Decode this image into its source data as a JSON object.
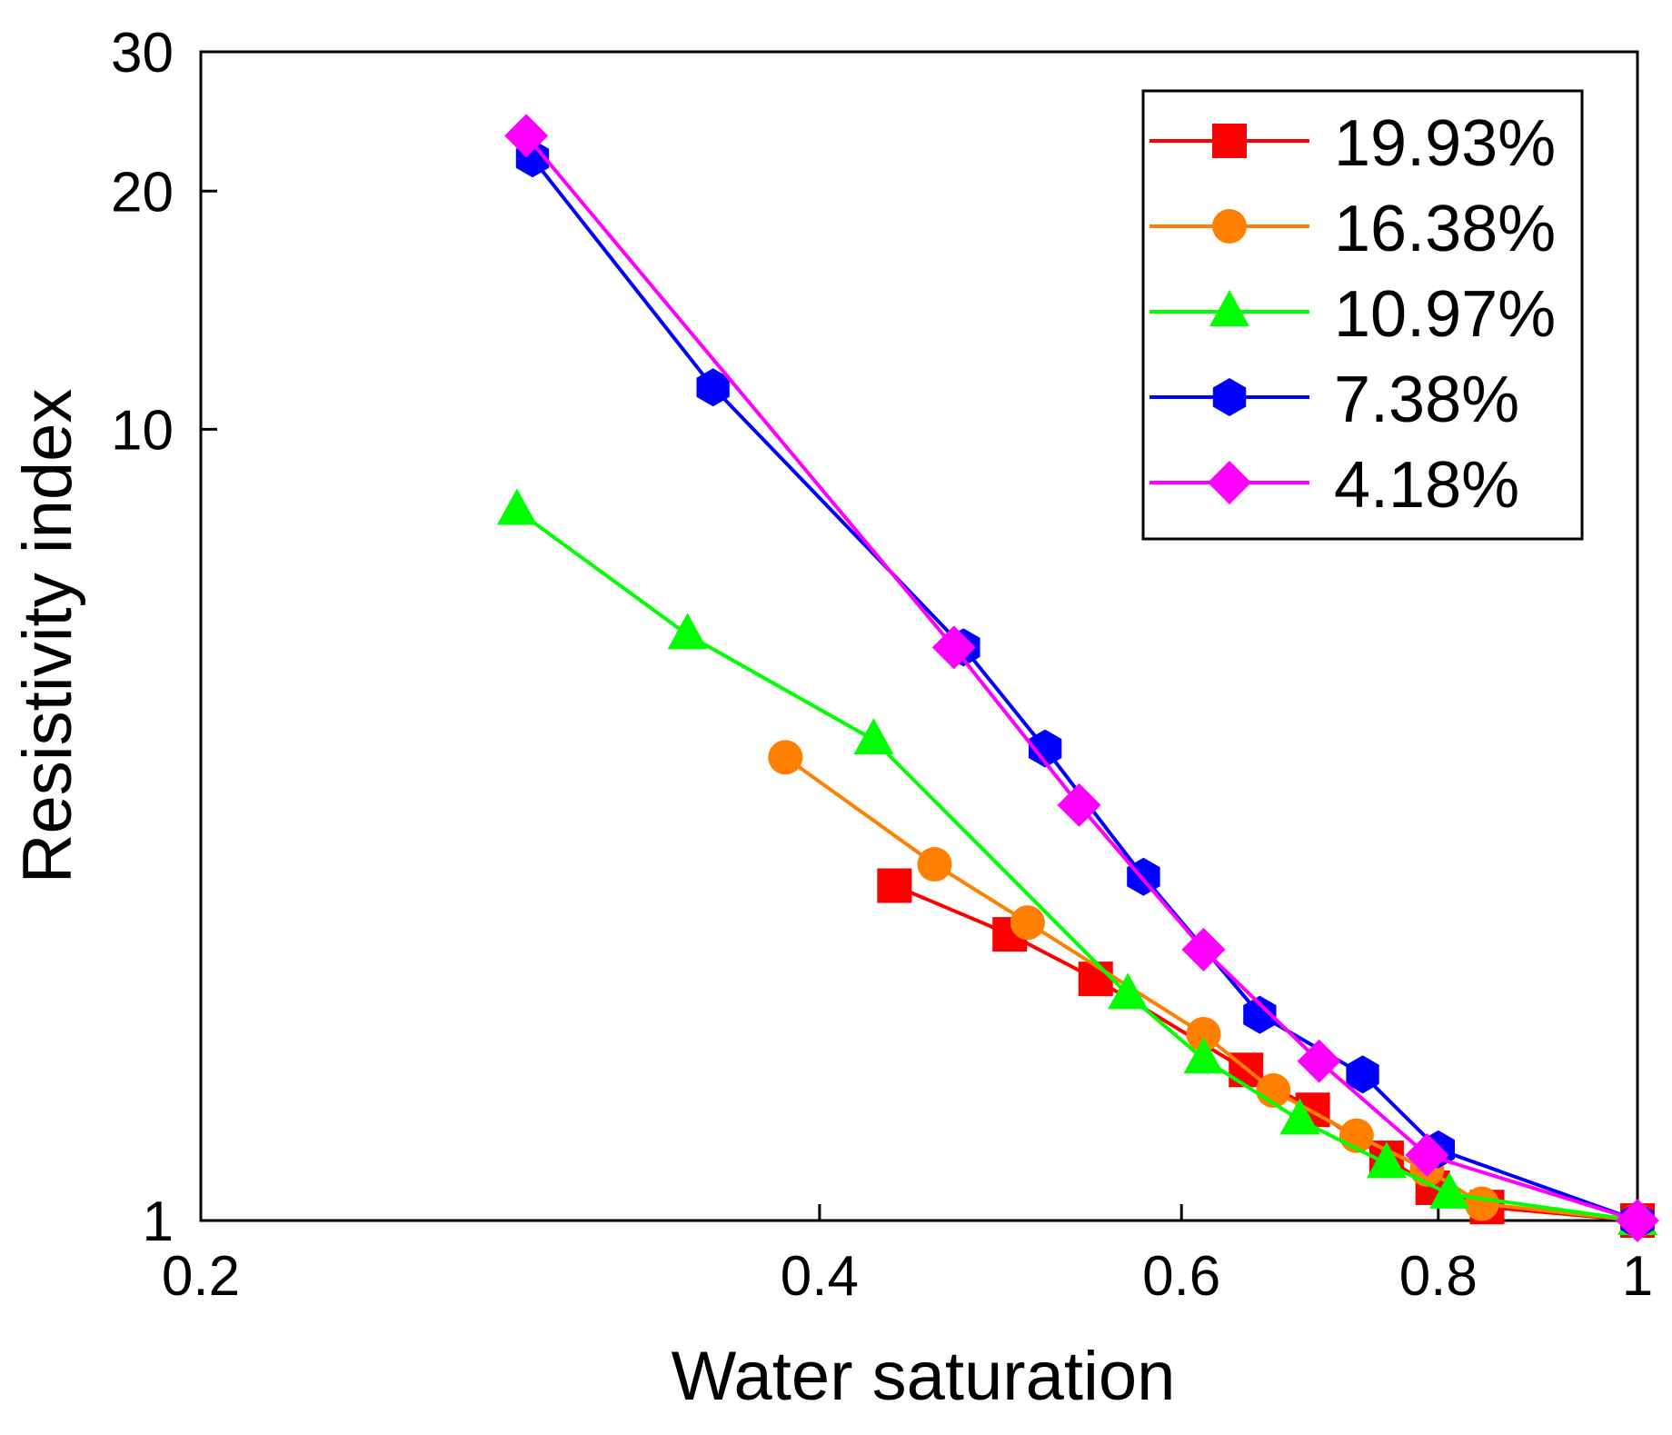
{
  "chart_data": {
    "type": "line",
    "xlabel": "Water saturation",
    "ylabel": "Resistivity index",
    "x_scale": "log",
    "y_scale": "log",
    "xlim": [
      0.2,
      1
    ],
    "ylim": [
      1,
      30
    ],
    "xticks": [
      {
        "value": 0.2,
        "label": "0.2"
      },
      {
        "value": 0.4,
        "label": "0.4"
      },
      {
        "value": 0.6,
        "label": "0.6"
      },
      {
        "value": 0.8,
        "label": "0.8"
      },
      {
        "value": 1,
        "label": "1"
      }
    ],
    "yticks": [
      {
        "value": 1,
        "label": "1"
      },
      {
        "value": 10,
        "label": "10"
      },
      {
        "value": 20,
        "label": "20"
      },
      {
        "value": 30,
        "label": "30"
      }
    ],
    "legend_position": "top-right",
    "grid": false,
    "series": [
      {
        "name": "19.93%",
        "color": "#ff0000",
        "marker": "square",
        "points": [
          [
            0.435,
            2.65
          ],
          [
            0.495,
            2.3
          ],
          [
            0.545,
            2.02
          ],
          [
            0.645,
            1.55
          ],
          [
            0.695,
            1.38
          ],
          [
            0.755,
            1.2
          ],
          [
            0.795,
            1.1
          ],
          [
            0.845,
            1.04
          ],
          [
            1.0,
            1.0
          ]
        ]
      },
      {
        "name": "16.38%",
        "color": "#ff8000",
        "marker": "circle",
        "points": [
          [
            0.385,
            3.85
          ],
          [
            0.455,
            2.82
          ],
          [
            0.505,
            2.38
          ],
          [
            0.615,
            1.72
          ],
          [
            0.665,
            1.46
          ],
          [
            0.73,
            1.28
          ],
          [
            0.79,
            1.16
          ],
          [
            0.84,
            1.05
          ],
          [
            1.0,
            1.0
          ]
        ]
      },
      {
        "name": "10.97%",
        "color": "#00ff00",
        "marker": "triangle",
        "points": [
          [
            0.285,
            7.9
          ],
          [
            0.345,
            5.5
          ],
          [
            0.425,
            4.05
          ],
          [
            0.565,
            1.93
          ],
          [
            0.615,
            1.6
          ],
          [
            0.685,
            1.34
          ],
          [
            0.755,
            1.18
          ],
          [
            0.81,
            1.08
          ],
          [
            1.0,
            1.0
          ]
        ]
      },
      {
        "name": "7.38%",
        "color": "#0000ff",
        "marker": "hexagon",
        "points": [
          [
            0.29,
            22.0
          ],
          [
            0.355,
            11.3
          ],
          [
            0.47,
            5.3
          ],
          [
            0.515,
            3.95
          ],
          [
            0.575,
            2.72
          ],
          [
            0.655,
            1.82
          ],
          [
            0.735,
            1.53
          ],
          [
            0.8,
            1.23
          ],
          [
            1.0,
            1.0
          ]
        ]
      },
      {
        "name": "4.18%",
        "color": "#ff00ff",
        "marker": "diamond",
        "points": [
          [
            0.288,
            23.5
          ],
          [
            0.465,
            5.3
          ],
          [
            0.535,
            3.35
          ],
          [
            0.615,
            2.2
          ],
          [
            0.7,
            1.59
          ],
          [
            0.79,
            1.21
          ],
          [
            1.0,
            1.0
          ]
        ]
      }
    ]
  }
}
